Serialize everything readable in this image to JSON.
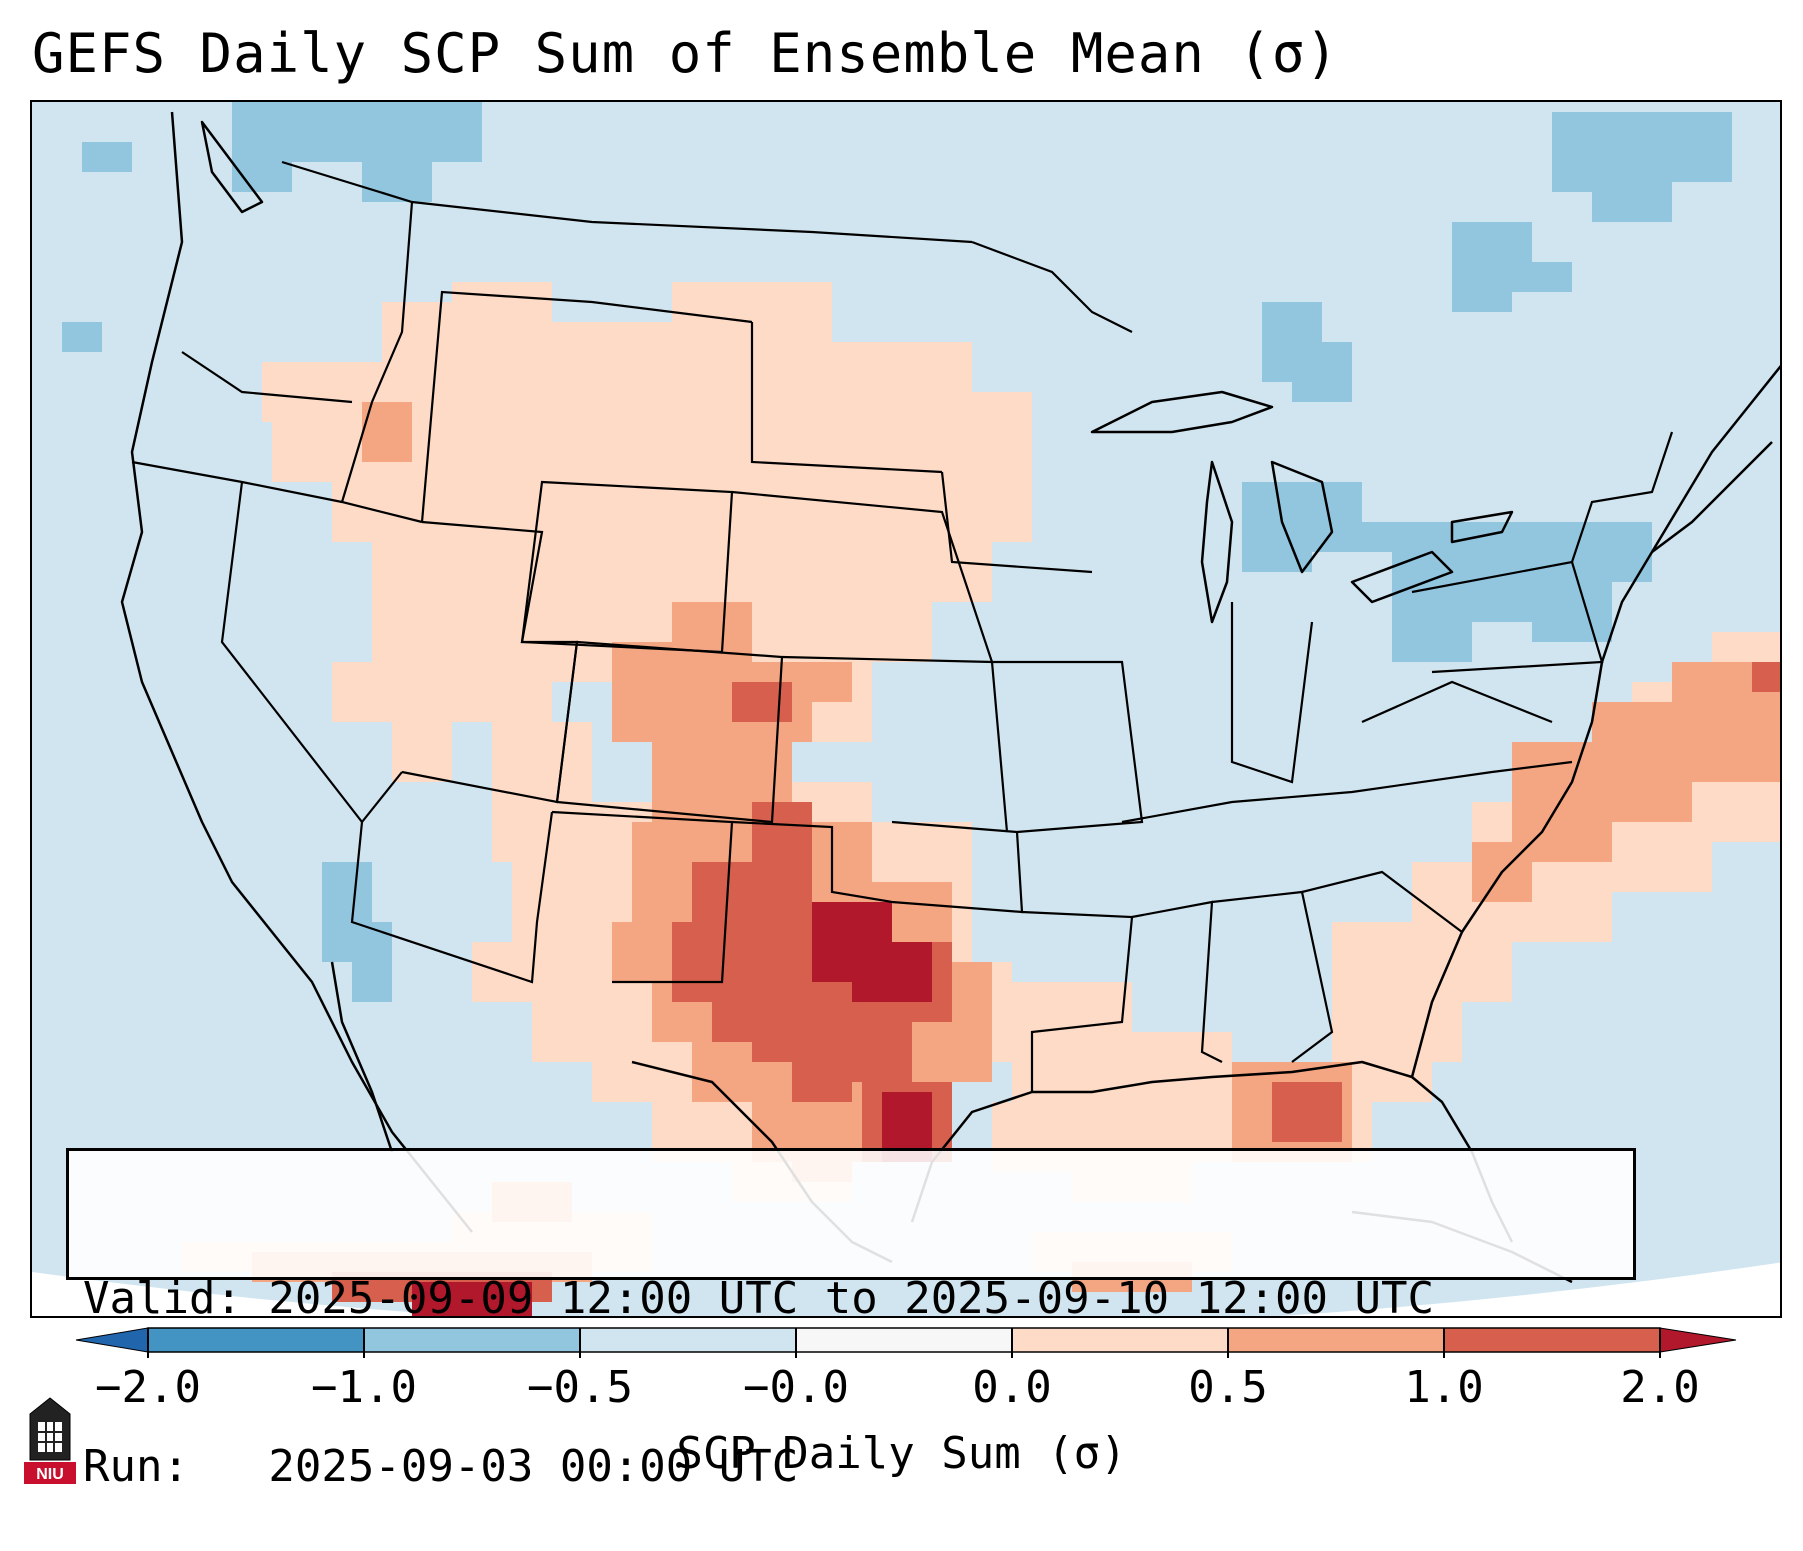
{
  "title": "GEFS Daily SCP Sum of Ensemble Mean (σ)",
  "info": {
    "valid_line": "Valid: 2025-09-09 12:00 UTC to 2025-09-10 12:00 UTC",
    "run_line": "Run:   2025-09-03 00:00 UTC"
  },
  "colorbar": {
    "label": "SCP Daily Sum (σ)",
    "ticks": [
      "−2.0",
      "−1.0",
      "−0.5",
      "−0.0",
      "0.0",
      "0.5",
      "1.0",
      "2.0"
    ],
    "colors": [
      "#3a7fc0",
      "#8dc1de",
      "#d1e5f0",
      "#f7f7f7",
      "#fddbc7",
      "#f4a582",
      "#d6604d",
      "#b2182b"
    ]
  },
  "logo": {
    "text": "NIU"
  },
  "colors": {
    "background_field": "#d1e5f0",
    "low_field": "#92c5de",
    "high_1": "#fddbc7",
    "high_2": "#f4a582",
    "high_3": "#d6604d",
    "high_4": "#b2182b"
  }
}
